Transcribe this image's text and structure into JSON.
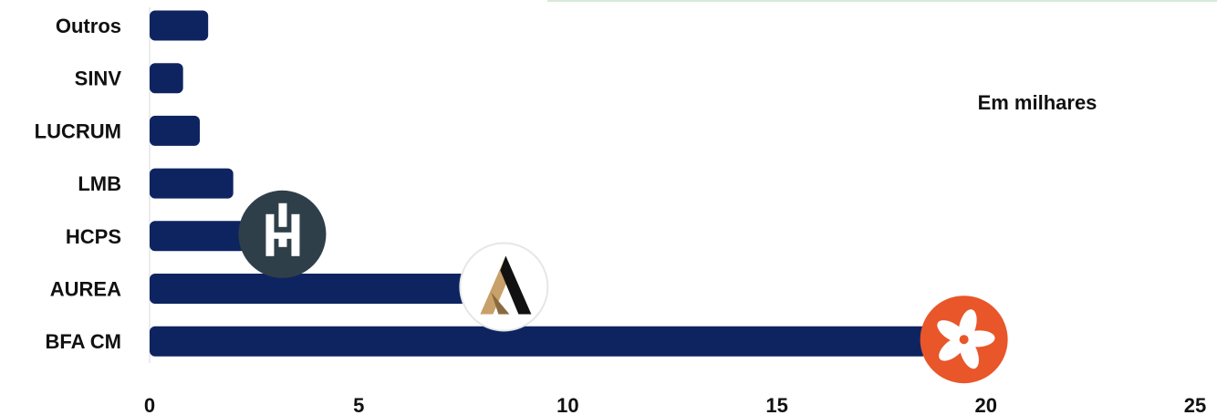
{
  "chart_data": {
    "type": "bar",
    "orientation": "horizontal",
    "categories": [
      "Outros",
      "SINV",
      "LUCRUM",
      "LMB",
      "HCPS",
      "AUREA",
      "BFA CM"
    ],
    "values": [
      1.4,
      0.8,
      1.2,
      2.0,
      2.3,
      7.6,
      18.6
    ],
    "xlim": [
      0,
      25
    ],
    "xticks": [
      "0",
      "5",
      "10",
      "15",
      "20",
      "25"
    ],
    "annotation": "Em milhares",
    "bar_color": "#0e2461",
    "grid": false,
    "logos": [
      {
        "category": "HCPS",
        "icon": "hcps-logo-icon",
        "bg": "#2f3f4a"
      },
      {
        "category": "AUREA",
        "icon": "aurea-logo-icon",
        "bg": "#ffffff"
      },
      {
        "category": "BFA CM",
        "icon": "bfa-logo-icon",
        "bg": "#e8562a"
      }
    ]
  }
}
